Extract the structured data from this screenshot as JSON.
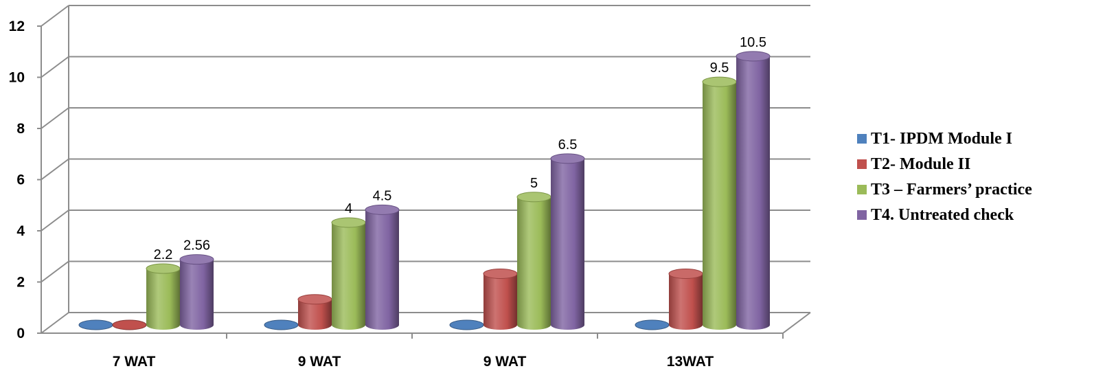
{
  "chart_data": {
    "type": "bar",
    "style": "3d-cylinder",
    "categories": [
      "7 WAT",
      "9 WAT",
      "9 WAT",
      "13WAT"
    ],
    "series": [
      {
        "name": "T1- IPDM Module I",
        "color": "#4F81BD",
        "values": [
          0,
          0,
          0,
          0
        ]
      },
      {
        "name": "T2- Module II",
        "color": "#C0504D",
        "values": [
          0,
          1,
          2,
          2
        ]
      },
      {
        "name": "T3 – Farmers’ practice",
        "color": "#9BBB59",
        "values": [
          2.2,
          4,
          5,
          9.5
        ]
      },
      {
        "name": "T4. Untreated check",
        "color": "#8064A2",
        "values": [
          2.56,
          4.5,
          6.5,
          10.5
        ]
      }
    ],
    "data_labels": [
      {
        "series": 2,
        "category": 0,
        "text": "2.2"
      },
      {
        "series": 3,
        "category": 0,
        "text": "2.56"
      },
      {
        "series": 2,
        "category": 1,
        "text": "4"
      },
      {
        "series": 3,
        "category": 1,
        "text": "4.5"
      },
      {
        "series": 2,
        "category": 2,
        "text": "5"
      },
      {
        "series": 3,
        "category": 2,
        "text": "6.5"
      },
      {
        "series": 2,
        "category": 3,
        "text": "9.5"
      },
      {
        "series": 3,
        "category": 3,
        "text": "10.5"
      }
    ],
    "ylim": [
      0,
      12
    ],
    "yticks": [
      0,
      2,
      4,
      6,
      8,
      10,
      12
    ],
    "grid": true,
    "legend_position": "right"
  }
}
